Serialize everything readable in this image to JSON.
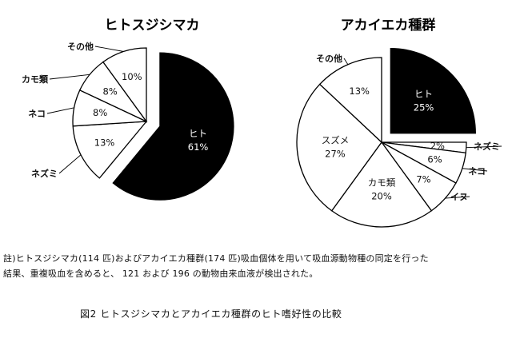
{
  "chart_data": [
    {
      "type": "pie",
      "title": "ヒトスジシマカ",
      "slices": [
        {
          "label": "ヒト",
          "value": 61,
          "pct": "61%",
          "color": "#000000",
          "exploded": true,
          "label_inside": true
        },
        {
          "label": "ネズミ",
          "value": 13,
          "pct": "13%",
          "color": "#ffffff"
        },
        {
          "label": "ネコ",
          "value": 8,
          "pct": "8%",
          "color": "#ffffff"
        },
        {
          "label": "カモ類",
          "value": 8,
          "pct": "8%",
          "color": "#ffffff"
        },
        {
          "label": "その他",
          "value": 10,
          "pct": "10%",
          "color": "#ffffff"
        }
      ]
    },
    {
      "type": "pie",
      "title": "アカイエカ種群",
      "slices": [
        {
          "label": "ヒト",
          "value": 25,
          "pct": "25%",
          "color": "#000000",
          "exploded": true,
          "label_inside": true
        },
        {
          "label": "ネズミ",
          "value": 2,
          "pct": "2%",
          "color": "#ffffff"
        },
        {
          "label": "ネコ",
          "value": 6,
          "pct": "6%",
          "color": "#ffffff"
        },
        {
          "label": "イヌ",
          "value": 7,
          "pct": "7%",
          "color": "#ffffff"
        },
        {
          "label": "カモ類",
          "value": 20,
          "pct": "20%",
          "color": "#ffffff",
          "label_inside": true
        },
        {
          "label": "スズメ",
          "value": 27,
          "pct": "27%",
          "color": "#ffffff",
          "label_inside": true
        },
        {
          "label": "その他",
          "value": 13,
          "pct": "13%",
          "color": "#ffffff"
        }
      ]
    }
  ],
  "note": {
    "line1": "註)ヒトスジシマカ(114 匹)およびアカイエカ種群(174 匹)吸血個体を用いて吸血源動物種の同定を行った",
    "line2": "結果、重複吸血を含めると、 121 および 196 の動物由来血液が検出された。"
  },
  "caption": "図2 ヒトスジシマカとアカイエカ種群のヒト嗜好性の比較"
}
